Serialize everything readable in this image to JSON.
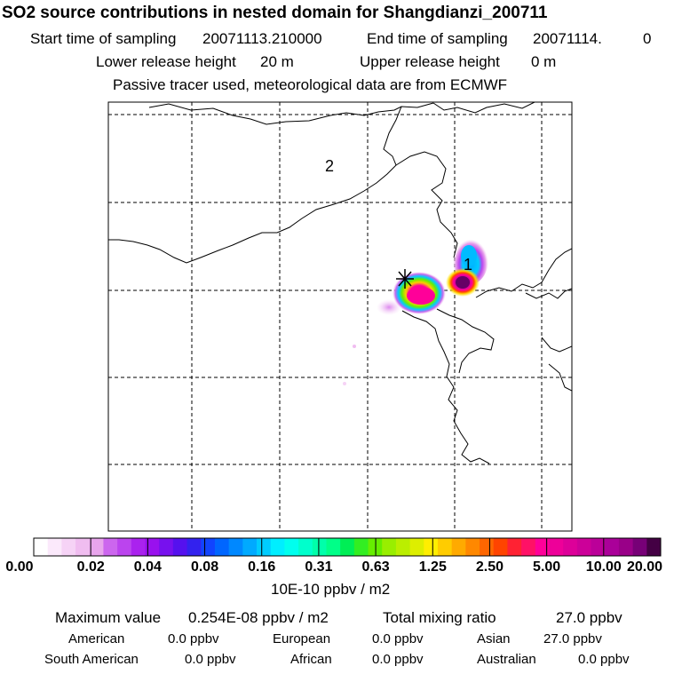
{
  "header": {
    "title": "SO2 source contributions in nested domain for Shangdianzi_200711",
    "start_label": "Start time of sampling",
    "start_value": "20071113.210000",
    "end_label": "End time of sampling",
    "end_value": "20071114.",
    "end_extra": "0",
    "lower_label": "Lower release height",
    "lower_value": "20 m",
    "upper_label": "Upper release height",
    "upper_value": "0 m",
    "tracer_note": "Passive tracer used, meteorological data are from ECMWF"
  },
  "map": {
    "region_labels": [
      "2",
      "1"
    ],
    "station_marker": "asterisk-icon"
  },
  "colorbar": {
    "unit": "10E-10 ppbv / m2",
    "tick_labels": [
      "0.00",
      "0.02",
      "0.04",
      "0.08",
      "0.16",
      "0.31",
      "0.63",
      "1.25",
      "2.50",
      "5.00",
      "10.00",
      "20.00"
    ],
    "colors": [
      "#ffffff",
      "#fbe9fb",
      "#f6d3f6",
      "#f0bdf0",
      "#e8a5ec",
      "#cc66ee",
      "#bb44ee",
      "#aa22ee",
      "#9911ee",
      "#7711ee",
      "#5511ee",
      "#3322ee",
      "#1144ff",
      "#0066ff",
      "#0088ff",
      "#00aaff",
      "#00ccff",
      "#00eeff",
      "#00ffee",
      "#00ffcc",
      "#00ffaa",
      "#00ff88",
      "#00ee55",
      "#33ee22",
      "#66ee00",
      "#99ee00",
      "#bbee00",
      "#ddee00",
      "#ffee00",
      "#ffcc00",
      "#ffaa00",
      "#ff8800",
      "#ff6600",
      "#ff4400",
      "#ff2233",
      "#ff1166",
      "#ff0099",
      "#ee0099",
      "#dd0099",
      "#cc0099",
      "#bb0099",
      "#aa0099",
      "#990088",
      "#770077",
      "#440044"
    ]
  },
  "stats": {
    "max_label": "Maximum value",
    "max_value": "0.254E-08 ppbv / m2",
    "total_label": "Total mixing ratio",
    "total_value": "27.0 ppbv",
    "regions": [
      {
        "name": "American",
        "value": "0.0 ppbv"
      },
      {
        "name": "European",
        "value": "0.0 ppbv"
      },
      {
        "name": "Asian",
        "value": "27.0 ppbv"
      },
      {
        "name": "South American",
        "value": "0.0 ppbv"
      },
      {
        "name": "African",
        "value": "0.0 ppbv"
      },
      {
        "name": "Australian",
        "value": "0.0 ppbv"
      }
    ]
  }
}
